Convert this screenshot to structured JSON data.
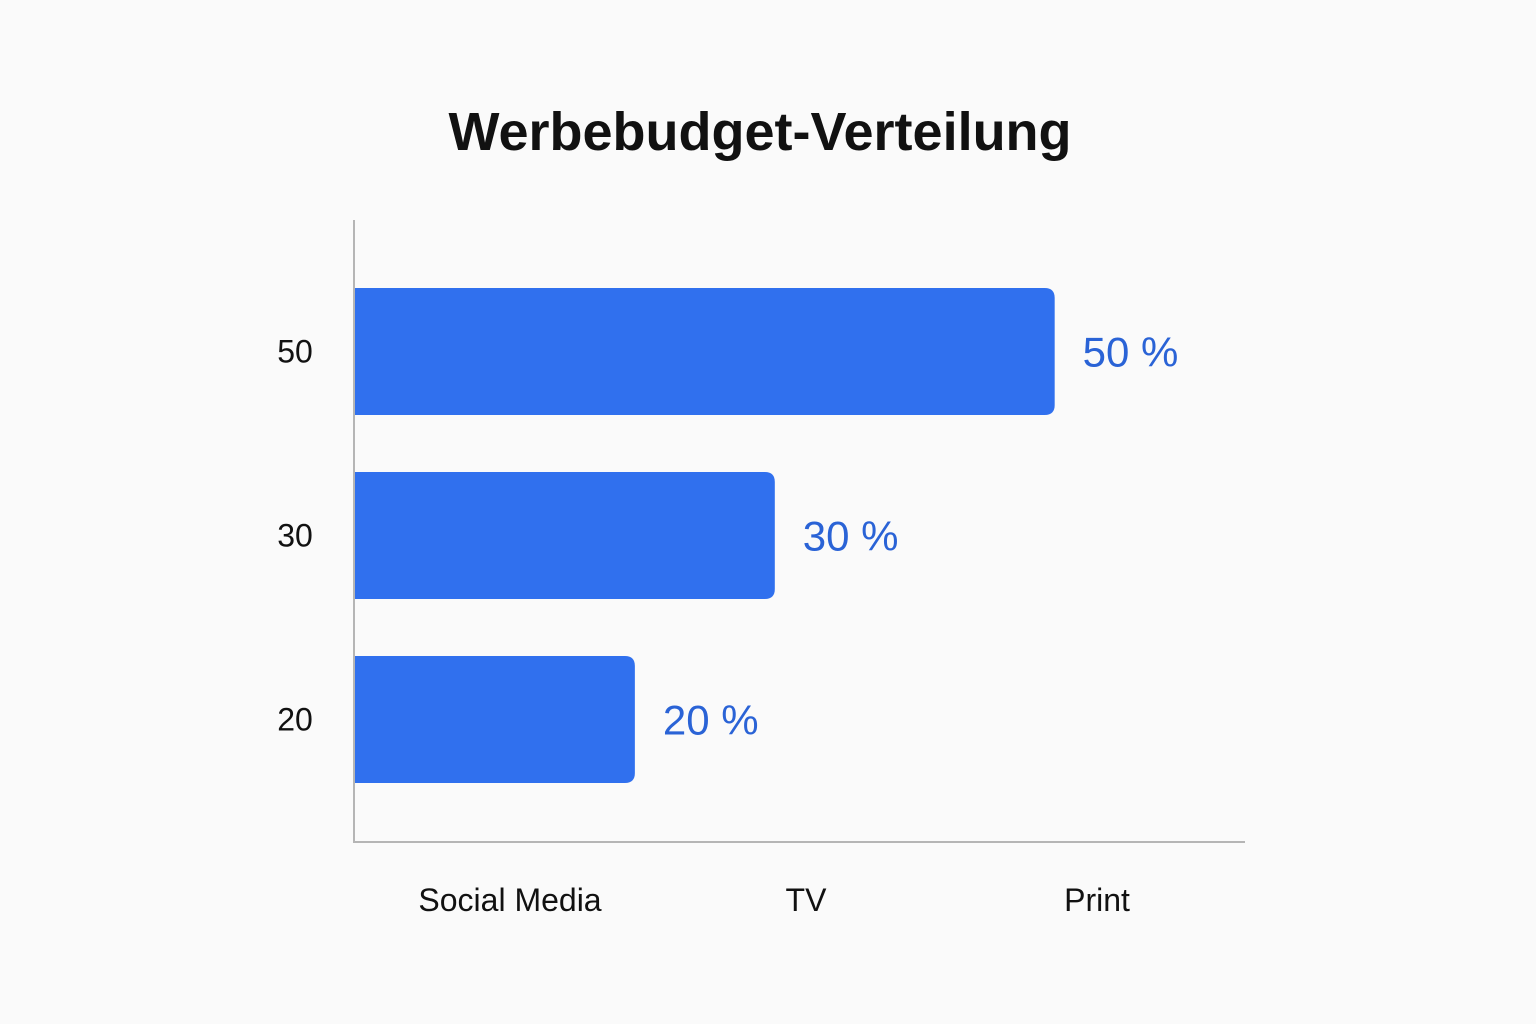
{
  "chart_data": {
    "type": "bar",
    "orientation": "horizontal",
    "title": "Werbebudget-Verteilung",
    "categories": [
      "Social Media",
      "TV",
      "Print"
    ],
    "values": [
      50,
      30,
      20
    ],
    "value_labels": [
      "50 %",
      "30 %",
      "20 %"
    ],
    "y_tick_labels": [
      "50",
      "30",
      "20"
    ],
    "x_tick_labels": [
      "Social Media",
      "TV",
      "Print"
    ],
    "xlim": [
      0,
      63.6
    ],
    "grid": false,
    "colors": {
      "bar": "#3070ee",
      "value_label": "#2a63d6",
      "axis": "#b5b5b5",
      "text": "#111111"
    }
  }
}
